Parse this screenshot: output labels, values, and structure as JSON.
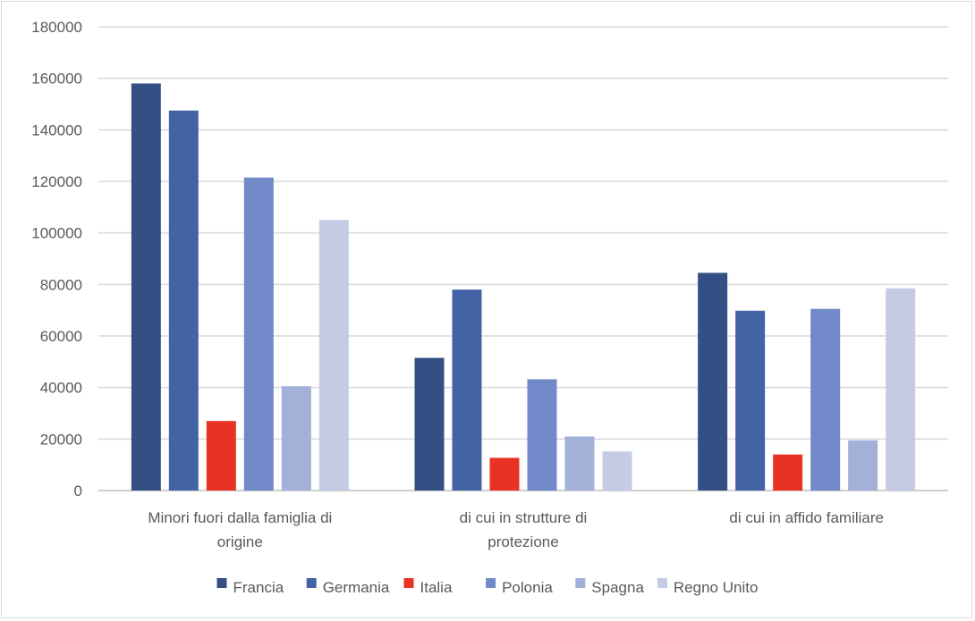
{
  "chart_data": {
    "type": "bar",
    "title": "",
    "xlabel": "",
    "ylabel": "",
    "ylim": [
      0,
      180000
    ],
    "yticks": [
      0,
      20000,
      40000,
      60000,
      80000,
      100000,
      120000,
      140000,
      160000,
      180000
    ],
    "grid": true,
    "legend_position": "bottom",
    "categories": [
      "Minori fuori dalla famiglia di origine",
      "di cui in strutture di protezione",
      "di cui in affido familiare"
    ],
    "series": [
      {
        "name": "Francia",
        "color": "#344f84",
        "values": [
          158000,
          51500,
          84500
        ]
      },
      {
        "name": "Germania",
        "color": "#4363a4",
        "values": [
          147500,
          78000,
          69800
        ]
      },
      {
        "name": "Italia",
        "color": "#e83324",
        "values": [
          27000,
          12700,
          14000
        ]
      },
      {
        "name": "Polonia",
        "color": "#7189c9",
        "values": [
          121500,
          43200,
          70500
        ]
      },
      {
        "name": "Spagna",
        "color": "#a3b0d7",
        "values": [
          40500,
          21000,
          19500
        ]
      },
      {
        "name": "Regno Unito",
        "color": "#c5cbe4",
        "values": [
          105000,
          15200,
          78500
        ]
      }
    ]
  }
}
